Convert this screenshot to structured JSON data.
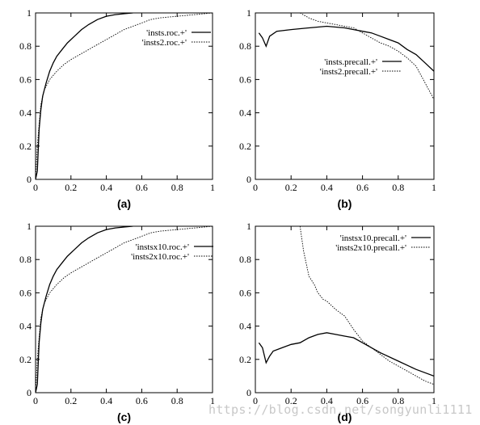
{
  "watermark": "https://blog.csdn.net/songyunli1111",
  "chart_data": [
    {
      "type": "line",
      "caption": "(a)",
      "xlim": [
        0,
        1
      ],
      "ylim": [
        0,
        1
      ],
      "xticks": [
        "0",
        "0.2",
        "0.4",
        "0.6",
        "0.8",
        "1"
      ],
      "yticks": [
        "0",
        "0.2",
        "0.4",
        "0.6",
        "0.8",
        "1"
      ],
      "grid": false,
      "legend_position": "top-right",
      "series": [
        {
          "name": "'insts.roc.+'",
          "style": "solid",
          "x": [
            0,
            0.01,
            0.02,
            0.03,
            0.04,
            0.06,
            0.08,
            0.1,
            0.12,
            0.15,
            0.18,
            0.22,
            0.26,
            0.3,
            0.35,
            0.4,
            0.45,
            0.5,
            0.55
          ],
          "y": [
            0,
            0.05,
            0.3,
            0.42,
            0.5,
            0.58,
            0.65,
            0.7,
            0.74,
            0.78,
            0.82,
            0.86,
            0.9,
            0.93,
            0.96,
            0.98,
            0.99,
            0.995,
            1.0
          ]
        },
        {
          "name": "'insts2.roc.+'",
          "style": "dashed",
          "x": [
            0,
            0.01,
            0.02,
            0.03,
            0.05,
            0.08,
            0.12,
            0.16,
            0.2,
            0.25,
            0.3,
            0.35,
            0.4,
            0.45,
            0.5,
            0.55,
            0.6,
            0.65,
            0.7,
            0.8,
            0.9,
            1.0
          ],
          "y": [
            0,
            0.2,
            0.33,
            0.45,
            0.54,
            0.6,
            0.65,
            0.69,
            0.72,
            0.75,
            0.78,
            0.81,
            0.84,
            0.87,
            0.9,
            0.92,
            0.94,
            0.96,
            0.97,
            0.98,
            0.99,
            1.0
          ]
        }
      ]
    },
    {
      "type": "line",
      "caption": "(b)",
      "xlim": [
        0,
        1
      ],
      "ylim": [
        0,
        1
      ],
      "xticks": [
        "0",
        "0.2",
        "0.4",
        "0.6",
        "0.8",
        "1"
      ],
      "yticks": [
        "0",
        "0.2",
        "0.4",
        "0.6",
        "0.8",
        "1"
      ],
      "grid": false,
      "legend_position": "center-right",
      "series": [
        {
          "name": "'insts.precall.+'",
          "style": "solid",
          "x": [
            0.02,
            0.04,
            0.06,
            0.08,
            0.12,
            0.2,
            0.3,
            0.4,
            0.5,
            0.55,
            0.6,
            0.65,
            0.7,
            0.75,
            0.8,
            0.85,
            0.9,
            0.95,
            1.0
          ],
          "y": [
            0.88,
            0.85,
            0.8,
            0.86,
            0.89,
            0.9,
            0.91,
            0.92,
            0.91,
            0.9,
            0.89,
            0.88,
            0.86,
            0.84,
            0.82,
            0.78,
            0.75,
            0.7,
            0.65
          ]
        },
        {
          "name": "'insts2.precall.+'",
          "style": "dashed",
          "x": [
            0.25,
            0.3,
            0.35,
            0.4,
            0.45,
            0.5,
            0.55,
            0.6,
            0.65,
            0.7,
            0.75,
            0.8,
            0.85,
            0.9,
            0.95,
            1.0
          ],
          "y": [
            1.0,
            0.97,
            0.95,
            0.94,
            0.93,
            0.92,
            0.91,
            0.88,
            0.85,
            0.82,
            0.8,
            0.77,
            0.73,
            0.68,
            0.58,
            0.48
          ]
        }
      ]
    },
    {
      "type": "line",
      "caption": "(c)",
      "xlim": [
        0,
        1
      ],
      "ylim": [
        0,
        1
      ],
      "xticks": [
        "0",
        "0.2",
        "0.4",
        "0.6",
        "0.8",
        "1"
      ],
      "yticks": [
        "0",
        "0.2",
        "0.4",
        "0.6",
        "0.8",
        "1"
      ],
      "grid": false,
      "legend_position": "top-right",
      "series": [
        {
          "name": "'instsx10.roc.+'",
          "style": "solid",
          "x": [
            0,
            0.01,
            0.02,
            0.03,
            0.04,
            0.06,
            0.08,
            0.1,
            0.12,
            0.15,
            0.18,
            0.22,
            0.26,
            0.3,
            0.35,
            0.4,
            0.45,
            0.5,
            0.55
          ],
          "y": [
            0,
            0.05,
            0.3,
            0.42,
            0.5,
            0.58,
            0.65,
            0.7,
            0.74,
            0.78,
            0.82,
            0.86,
            0.9,
            0.93,
            0.96,
            0.98,
            0.99,
            0.995,
            1.0
          ]
        },
        {
          "name": "'insts2x10.roc.+'",
          "style": "dashed",
          "x": [
            0,
            0.01,
            0.02,
            0.03,
            0.05,
            0.08,
            0.12,
            0.16,
            0.2,
            0.25,
            0.3,
            0.35,
            0.4,
            0.45,
            0.5,
            0.55,
            0.6,
            0.65,
            0.7,
            0.8,
            0.9,
            1.0
          ],
          "y": [
            0,
            0.2,
            0.33,
            0.45,
            0.54,
            0.6,
            0.65,
            0.69,
            0.72,
            0.75,
            0.78,
            0.81,
            0.84,
            0.87,
            0.9,
            0.92,
            0.94,
            0.96,
            0.97,
            0.98,
            0.99,
            1.0
          ]
        }
      ]
    },
    {
      "type": "line",
      "caption": "(d)",
      "xlim": [
        0,
        1
      ],
      "ylim": [
        0,
        1
      ],
      "xticks": [
        "0",
        "0.2",
        "0.4",
        "0.6",
        "0.8",
        "1"
      ],
      "yticks": [
        "0",
        "0.2",
        "0.4",
        "0.6",
        "0.8",
        "1"
      ],
      "grid": false,
      "legend_position": "top-right",
      "series": [
        {
          "name": "'instsx10.precall.+'",
          "style": "solid",
          "x": [
            0.02,
            0.04,
            0.06,
            0.08,
            0.1,
            0.15,
            0.2,
            0.25,
            0.3,
            0.35,
            0.4,
            0.45,
            0.5,
            0.55,
            0.6,
            0.7,
            0.8,
            0.9,
            1.0
          ],
          "y": [
            0.3,
            0.27,
            0.18,
            0.22,
            0.25,
            0.27,
            0.29,
            0.3,
            0.33,
            0.35,
            0.36,
            0.35,
            0.34,
            0.33,
            0.3,
            0.24,
            0.19,
            0.14,
            0.1
          ]
        },
        {
          "name": "'insts2x10.precall.+'",
          "style": "dashed",
          "x": [
            0.25,
            0.27,
            0.3,
            0.33,
            0.35,
            0.38,
            0.4,
            0.45,
            0.5,
            0.55,
            0.6,
            0.65,
            0.7,
            0.75,
            0.8,
            0.85,
            0.9,
            0.95,
            1.0
          ],
          "y": [
            1.0,
            0.85,
            0.7,
            0.65,
            0.6,
            0.56,
            0.55,
            0.5,
            0.46,
            0.38,
            0.31,
            0.27,
            0.23,
            0.19,
            0.16,
            0.13,
            0.1,
            0.07,
            0.05
          ]
        }
      ]
    }
  ]
}
